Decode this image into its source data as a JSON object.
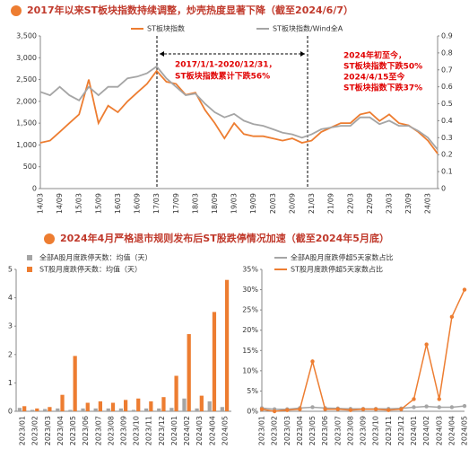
{
  "sections": [
    {
      "title": "2017年以来ST板块指数持续调整，炒壳热度显著下降（截至2024/6/7）"
    },
    {
      "title": "2024年4月严格退市规则发布后ST股跌停情况加速（截至2024年5月底）"
    }
  ],
  "chart_data": [
    {
      "type": "line",
      "categories": [
        "14/03",
        null,
        "14/09",
        null,
        "15/03",
        null,
        "15/09",
        null,
        "16/03",
        null,
        "16/09",
        null,
        "17/03",
        null,
        "17/09",
        null,
        "18/03",
        null,
        "18/09",
        null,
        "19/03",
        null,
        "19/09",
        null,
        "20/03",
        null,
        "20/09",
        null,
        "21/03",
        null,
        "21/09",
        null,
        "22/03",
        null,
        "22/09",
        null,
        "23/03",
        null,
        "23/09",
        null,
        "24/03",
        null
      ],
      "series": [
        {
          "name": "ST板块指数",
          "color": "#ed7d31",
          "values": [
            1050,
            1100,
            1300,
            1500,
            1700,
            2500,
            1500,
            1900,
            1750,
            2000,
            2200,
            2400,
            2700,
            2450,
            2400,
            2150,
            2200,
            1800,
            1500,
            1150,
            1500,
            1250,
            1200,
            1200,
            1150,
            1100,
            1150,
            1050,
            1100,
            1300,
            1400,
            1500,
            1500,
            1700,
            1750,
            1550,
            1700,
            1500,
            1450,
            1300,
            1100,
            800
          ]
        },
        {
          "name": "ST板块指数/Wind全A",
          "color": "#a5a5a5",
          "axis": "y2",
          "values": [
            0.57,
            0.55,
            0.6,
            0.55,
            0.52,
            0.6,
            0.55,
            0.6,
            0.6,
            0.65,
            0.66,
            0.68,
            0.72,
            0.65,
            0.6,
            0.55,
            0.56,
            0.5,
            0.45,
            0.42,
            0.44,
            0.4,
            0.38,
            0.37,
            0.35,
            0.33,
            0.32,
            0.3,
            0.32,
            0.35,
            0.36,
            0.37,
            0.37,
            0.42,
            0.42,
            0.38,
            0.4,
            0.37,
            0.37,
            0.34,
            0.3,
            0.23
          ]
        }
      ],
      "ylim": [
        0,
        3500
      ],
      "yticks": [
        0,
        500,
        {
          "value": 1000,
          "label": "1,000"
        },
        {
          "value": 1500,
          "label": "1,500"
        },
        {
          "value": 2000,
          "label": "2,000"
        },
        {
          "value": 2500,
          "label": "2,500"
        },
        {
          "value": 3000,
          "label": "3,000"
        },
        {
          "value": 3500,
          "label": "3,500"
        }
      ],
      "y2lim": [
        0,
        0.9
      ],
      "y2ticks": [
        0,
        0.1,
        0.2,
        0.3,
        0.4,
        0.5,
        0.6,
        0.7,
        0.8,
        0.9
      ],
      "annotations": [
        "2017/1/1-2020/12/31，",
        "ST板块指数累计下跌56%",
        "2024年初至今，",
        "ST板块指数下跌50%",
        "2024/4/15至今",
        "ST板块指数下跌37%"
      ]
    },
    {
      "type": "bar",
      "categories": [
        "2023/01",
        "2023/02",
        "2023/03",
        "2023/04",
        "2023/05",
        "2023/06",
        "2023/07",
        "2023/08",
        "2023/09",
        "2023/10",
        "2023/11",
        "2023/12",
        "2024/01",
        "2024/02",
        "2024/03",
        "2024/04",
        "2024/05"
      ],
      "series": [
        {
          "name": "全部A股月度跌停天数：均值（天）",
          "color": "#a5a5a5",
          "values": [
            0.12,
            0.05,
            0.08,
            0.1,
            0.05,
            0.1,
            0.1,
            0.1,
            0.1,
            0.05,
            0.1,
            0.1,
            0.12,
            0.45,
            0.1,
            0.35,
            0.15
          ]
        },
        {
          "name": "ST股月度跌停天数：均值（天）",
          "color": "#ed7d31",
          "values": [
            0.18,
            0.1,
            0.15,
            0.58,
            1.95,
            0.3,
            0.35,
            0.3,
            0.4,
            0.45,
            0.35,
            0.5,
            1.25,
            2.72,
            0.55,
            3.5,
            4.63
          ]
        }
      ],
      "ylim": [
        0,
        5
      ],
      "yticks": [
        0,
        1,
        2,
        3,
        4,
        5
      ]
    },
    {
      "type": "line",
      "categories": [
        "2023/01",
        "2023/02",
        "2023/03",
        "2023/04",
        "2023/05",
        "2023/06",
        "2023/07",
        "2023/08",
        "2023/09",
        "2023/10",
        "2023/11",
        "2023/12",
        "2024/01",
        "2024/02",
        "2024/03",
        "2024/04",
        "2024/05"
      ],
      "series": [
        {
          "name": "全部A股月度跌停超5天家数占比",
          "color": "#a5a5a5",
          "values": [
            0.8,
            0.5,
            0.5,
            0.8,
            1,
            0.8,
            0.7,
            0.6,
            0.6,
            0.6,
            0.6,
            0.7,
            1,
            1.2,
            1,
            1,
            1.3
          ]
        },
        {
          "name": "ST股月度跌停超5天家数占比",
          "color": "#ed7d31",
          "values": [
            0.5,
            0,
            0.3,
            0.5,
            12.3,
            0.5,
            0.5,
            0.3,
            0.5,
            0.5,
            0.3,
            0.5,
            3,
            16.5,
            3,
            23.3,
            30
          ]
        }
      ],
      "ylim": [
        0,
        35
      ],
      "yticks": [
        {
          "value": 0,
          "label": "0%"
        },
        {
          "value": 5,
          "label": "5%"
        },
        {
          "value": 10,
          "label": "10%"
        },
        {
          "value": 15,
          "label": "15%"
        },
        {
          "value": 20,
          "label": "20%"
        },
        {
          "value": 25,
          "label": "25%"
        },
        {
          "value": 30,
          "label": "30%"
        },
        {
          "value": 35,
          "label": "35%"
        }
      ],
      "markers": true
    }
  ]
}
